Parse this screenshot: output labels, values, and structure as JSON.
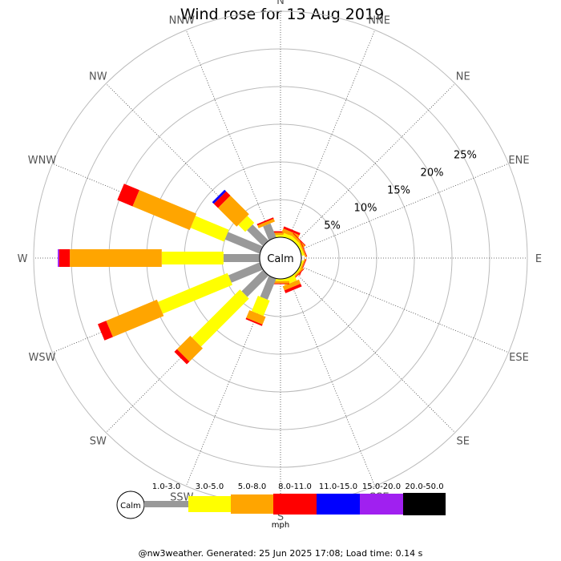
{
  "chart_data": {
    "type": "wind-rose",
    "title": "Wind rose for 13 Aug 2019",
    "directions": [
      "N",
      "NNE",
      "NE",
      "ENE",
      "E",
      "ESE",
      "SE",
      "SSE",
      "S",
      "SSW",
      "SW",
      "WSW",
      "W",
      "WNW",
      "NW",
      "NNW"
    ],
    "ring_labels": [
      "5%",
      "10%",
      "15%",
      "20%",
      "25%"
    ],
    "center_label": "Calm",
    "speed_bins": [
      "1.0-3.0",
      "3.0-5.0",
      "5.0-8.0",
      "8.0-11.0",
      "11.0-15.0",
      "15.0-20.0",
      "20.0-50.0"
    ],
    "unit": "mph",
    "colors": [
      "#999999",
      "#ffff00",
      "#ffa500",
      "#ff0000",
      "#0000ff",
      "#a020f0",
      "#000000"
    ],
    "series_cumulative_percent": [
      {
        "direction": "N",
        "values": [
          0,
          0.3,
          0.6,
          0.8,
          0.8,
          0.8,
          0.8
        ]
      },
      {
        "direction": "NNE",
        "values": [
          0,
          0.5,
          1.0,
          1.3,
          1.3,
          1.3,
          1.3
        ]
      },
      {
        "direction": "NE",
        "values": [
          0,
          0.4,
          0.7,
          0.8,
          0.8,
          0.8,
          0.8
        ]
      },
      {
        "direction": "ENE",
        "values": [
          0,
          0.3,
          0.5,
          0.6,
          0.6,
          0.6,
          0.6
        ]
      },
      {
        "direction": "E",
        "values": [
          0,
          0,
          0,
          0,
          0,
          0,
          0
        ]
      },
      {
        "direction": "ESE",
        "values": [
          0,
          0.2,
          0.4,
          0.5,
          0.5,
          0.5,
          0.5
        ]
      },
      {
        "direction": "SE",
        "values": [
          0,
          0.2,
          0.4,
          0.5,
          0.5,
          0.5,
          0.5
        ]
      },
      {
        "direction": "SSE",
        "values": [
          0,
          0.8,
          1.4,
          1.8,
          1.8,
          1.8,
          1.8
        ]
      },
      {
        "direction": "S",
        "values": [
          0,
          0.3,
          0.6,
          0.7,
          0.7,
          0.7,
          0.7
        ]
      },
      {
        "direction": "SSW",
        "values": [
          3.0,
          5.2,
          6.3,
          6.5,
          6.5,
          6.5,
          6.5
        ]
      },
      {
        "direction": "SW",
        "values": [
          4.0,
          13.0,
          15.5,
          16.0,
          16.0,
          16.0,
          16.0
        ]
      },
      {
        "direction": "WSW",
        "values": [
          4.5,
          14.5,
          21.8,
          23.0,
          23.0,
          23.0,
          23.0
        ]
      },
      {
        "direction": "W",
        "values": [
          4.8,
          13.0,
          25.2,
          26.6,
          26.6,
          26.8,
          26.8
        ]
      },
      {
        "direction": "WNW",
        "values": [
          5.0,
          9.8,
          18.0,
          20.2,
          20.2,
          20.2,
          20.2
        ]
      },
      {
        "direction": "NW",
        "values": [
          3.0,
          4.3,
          7.8,
          8.6,
          8.9,
          8.9,
          8.9
        ]
      },
      {
        "direction": "NNW",
        "values": [
          2.0,
          2.0,
          2.4,
          2.6,
          2.6,
          2.6,
          2.6
        ]
      }
    ],
    "footer": "@nw3weather. Generated: 25 Jun 2025 17:08; Load time: 0.14 s"
  }
}
